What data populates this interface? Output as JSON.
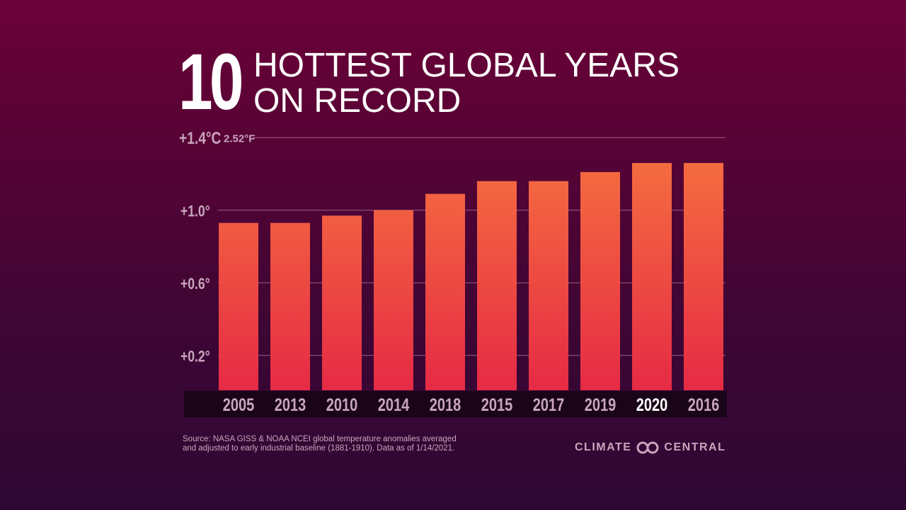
{
  "title": {
    "number": "10",
    "line1": "HOTTEST GLOBAL YEARS",
    "line2": "ON RECORD"
  },
  "chart_data": {
    "type": "bar",
    "categories": [
      "2005",
      "2013",
      "2010",
      "2014",
      "2018",
      "2015",
      "2017",
      "2019",
      "2020",
      "2016"
    ],
    "values": [
      0.93,
      0.93,
      0.97,
      1.0,
      1.09,
      1.16,
      1.16,
      1.21,
      1.26,
      1.26
    ],
    "highlighted_category": "2020",
    "ylim": [
      0,
      1.4
    ],
    "yticks": [
      {
        "value": 1.4,
        "label": "+1.4°C",
        "secondary": "2.52°F"
      },
      {
        "value": 1.0,
        "label": "+1.0°"
      },
      {
        "value": 0.6,
        "label": "+0.6°"
      },
      {
        "value": 0.2,
        "label": "+0.2°"
      }
    ],
    "grid": true,
    "colors": {
      "bar_top": "#f6733f",
      "bar_bottom": "#e62a45",
      "label": "#c9a6bd",
      "highlight_label": "#ffffff",
      "label_strip": "#1a0418"
    }
  },
  "source": {
    "line1": "Source: NASA GISS & NOAA NCEI global temperature anomalies averaged",
    "line2": "and adjusted to early industrial baseline (1881-1910). Data as of 1/14/2021."
  },
  "logo": {
    "left": "CLIMATE",
    "right": "CENTRAL",
    "icon": "linked-rings-icon"
  }
}
